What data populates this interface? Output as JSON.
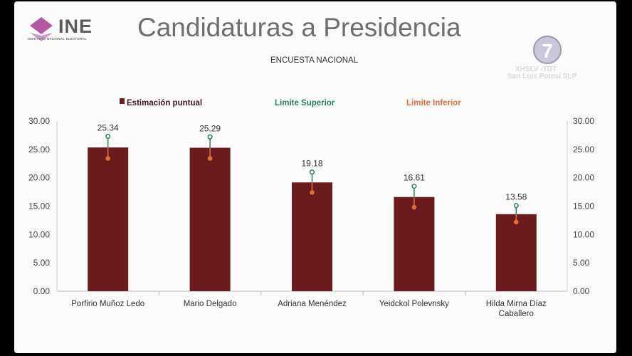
{
  "header": {
    "logo_text": "INE",
    "logo_subtext": "INSTITUTO NACIONAL ELECTORAL",
    "title": "Candidaturas a Presidencia",
    "subtitle": "ENCUESTA NACIONAL"
  },
  "watermark": {
    "channel_number": "7",
    "line1": "XHSLV -TDT",
    "line2": "San Luis Potosí SLP"
  },
  "colors": {
    "bar": "#6b1a1e",
    "upper": "#2e7d5b",
    "lower": "#e0703a",
    "logo_accent": "#b55aa0"
  },
  "chart_data": {
    "type": "bar",
    "categories": [
      "Porfirio Muñoz Ledo",
      "Mario Delgado",
      "Adriana Menéndez",
      "Yeidckol Polevnsky",
      "Hilda Mirna Díaz Caballero"
    ],
    "series": [
      {
        "name": "Estimación puntual",
        "values": [
          25.34,
          25.29,
          19.18,
          16.61,
          13.58
        ]
      },
      {
        "name": "Limite Superior",
        "values": [
          27.3,
          27.2,
          21.0,
          18.5,
          15.1
        ]
      },
      {
        "name": "Limite Inferior",
        "values": [
          23.4,
          23.4,
          17.4,
          14.8,
          12.2
        ]
      }
    ],
    "legend": [
      "Estimación puntual",
      "Limite Superior",
      "Limite Inferior"
    ],
    "legend_position": "top",
    "ylim": [
      0,
      30
    ],
    "yticks": [
      "0.00",
      "5.00",
      "10.00",
      "15.00",
      "20.00",
      "25.00",
      "30.00"
    ],
    "data_labels": [
      "25.34",
      "25.29",
      "19.18",
      "16.61",
      "13.58"
    ],
    "grid": false,
    "secondary_y_axis": true
  }
}
